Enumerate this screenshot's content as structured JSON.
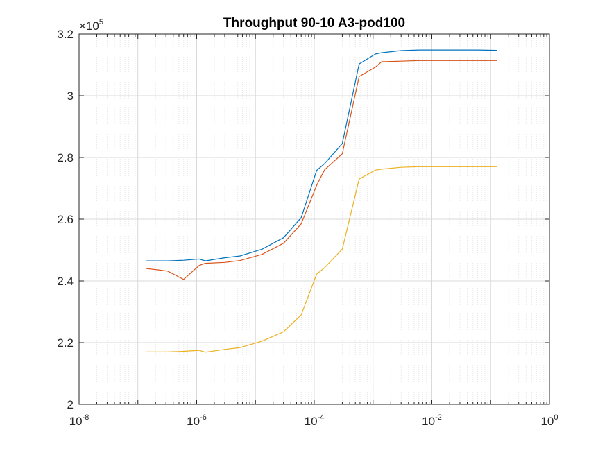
{
  "chart_data": {
    "type": "line",
    "title": "Throughput 90-10 A3-pod100",
    "xscale": "log",
    "xlim": [
      1e-08,
      1
    ],
    "ylim": [
      200000,
      320000
    ],
    "y_multiplier_label": "×10",
    "y_multiplier_exponent": "5",
    "grid": "major and minor on",
    "x_ticks": [
      {
        "value": 1e-08,
        "base": "10",
        "exp": "-8"
      },
      {
        "value": 1e-06,
        "base": "10",
        "exp": "-6"
      },
      {
        "value": 0.0001,
        "base": "10",
        "exp": "-4"
      },
      {
        "value": 0.01,
        "base": "10",
        "exp": "-2"
      },
      {
        "value": 1,
        "base": "10",
        "exp": "0"
      }
    ],
    "y_ticks": [
      {
        "value": 200000,
        "label": "2"
      },
      {
        "value": 220000,
        "label": "2.2"
      },
      {
        "value": 240000,
        "label": "2.4"
      },
      {
        "value": 260000,
        "label": "2.6"
      },
      {
        "value": 280000,
        "label": "2.8"
      },
      {
        "value": 300000,
        "label": "3"
      },
      {
        "value": 320000,
        "label": "3.2"
      }
    ],
    "x": [
      1.4e-07,
      2.2e-07,
      3.2e-07,
      6e-07,
      1.1e-06,
      1.4e-06,
      3e-06,
      5.5e-06,
      1.3e-05,
      3e-05,
      6e-05,
      0.00011,
      0.00015,
      0.0003,
      0.00058,
      0.0011,
      0.0014,
      0.003,
      0.006,
      0.012,
      0.03,
      0.06,
      0.13
    ],
    "series": [
      {
        "color": "#0072BD",
        "values": [
          246500,
          246500,
          246500,
          246700,
          247100,
          246500,
          247500,
          248100,
          250300,
          254000,
          260500,
          275800,
          278000,
          284500,
          310300,
          313500,
          313900,
          314600,
          314800,
          314800,
          314800,
          314800,
          314700
        ]
      },
      {
        "color": "#D95319",
        "values": [
          244000,
          243600,
          243200,
          240500,
          245000,
          245700,
          246000,
          246600,
          248600,
          252200,
          258500,
          271000,
          276000,
          281200,
          306200,
          309300,
          311000,
          311200,
          311400,
          311400,
          311400,
          311400,
          311400
        ]
      },
      {
        "color": "#EDB120",
        "values": [
          217000,
          217000,
          217000,
          217200,
          217500,
          216900,
          217800,
          218400,
          220500,
          223500,
          229000,
          242200,
          244300,
          250300,
          273000,
          275900,
          276200,
          276800,
          277000,
          277000,
          277000,
          277000,
          277000
        ]
      }
    ]
  }
}
